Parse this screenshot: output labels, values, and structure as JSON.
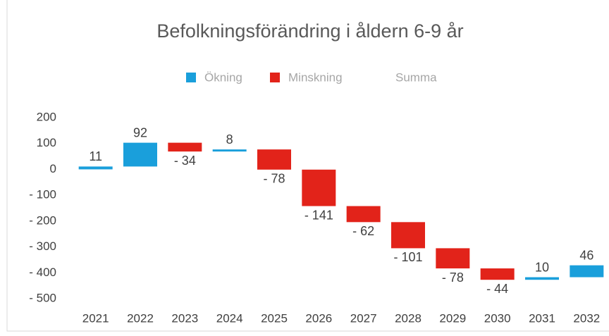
{
  "chart_data": {
    "type": "waterfall",
    "title": "Befolkningsförändring i åldern 6-9 år",
    "legend": [
      {
        "name": "Ökning",
        "color": "#1a9fdb"
      },
      {
        "name": "Minskning",
        "color": "#e2231a"
      },
      {
        "name": "Summa",
        "color": "#ffffff"
      }
    ],
    "categories": [
      "2021",
      "2022",
      "2023",
      "2024",
      "2025",
      "2026",
      "2027",
      "2028",
      "2029",
      "2030",
      "2031",
      "2032"
    ],
    "values": [
      11,
      92,
      -34,
      8,
      -78,
      -141,
      -62,
      -101,
      -78,
      -44,
      10,
      46
    ],
    "value_labels": [
      "11",
      "92",
      "- 34",
      "8",
      "- 78",
      "- 141",
      "- 62",
      "- 101",
      "- 78",
      "- 44",
      "10",
      "46"
    ],
    "ylim": [
      -500,
      200
    ],
    "yticks": [
      {
        "value": -500,
        "label": "- 500"
      },
      {
        "value": -400,
        "label": "- 400"
      },
      {
        "value": -300,
        "label": "- 300"
      },
      {
        "value": -200,
        "label": "- 200"
      },
      {
        "value": -100,
        "label": "- 100"
      },
      0,
      100,
      200
    ]
  }
}
